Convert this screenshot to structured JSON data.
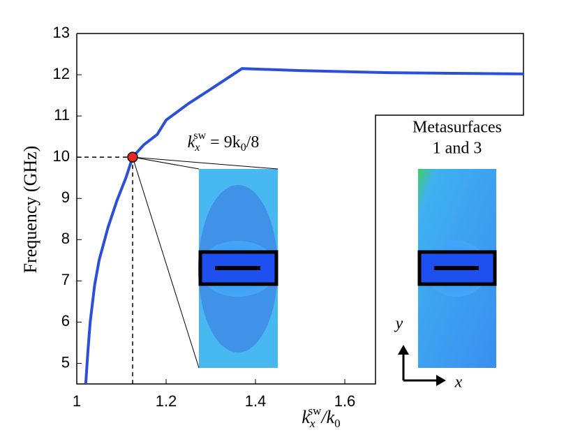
{
  "chart_data": {
    "type": "line",
    "ylabel": "Frequency (GHz)",
    "xlabel_parts": [
      "k",
      "x",
      "sw",
      "/k",
      "0"
    ],
    "annotation_parts": [
      "k",
      "x",
      "sw",
      " = 9k",
      "0",
      "/8"
    ],
    "inset_label": [
      "Metasurfaces",
      "1 and 3"
    ],
    "axis_arrows": [
      "y",
      "x"
    ],
    "xlim": [
      1,
      2
    ],
    "ylim": [
      4.5,
      13
    ],
    "xticks": [
      1,
      1.2,
      1.4,
      1.6
    ],
    "yticks": [
      5,
      6,
      7,
      8,
      9,
      10,
      11,
      12,
      13
    ],
    "series": [
      {
        "color": "#2a4fd8",
        "x": [
          1.02,
          1.025,
          1.03,
          1.04,
          1.05,
          1.07,
          1.09,
          1.11,
          1.125,
          1.15,
          1.18,
          1.2,
          1.25,
          1.3,
          1.37,
          1.5,
          1.7,
          2.0
        ],
        "values": [
          4.5,
          5.3,
          6.0,
          6.9,
          7.5,
          8.3,
          8.95,
          9.5,
          10.0,
          10.3,
          10.55,
          10.9,
          11.3,
          11.65,
          12.15,
          12.1,
          12.05,
          12.02
        ]
      }
    ],
    "highlight": {
      "x": 1.125,
      "y": 10,
      "color": "#e8261c"
    }
  }
}
